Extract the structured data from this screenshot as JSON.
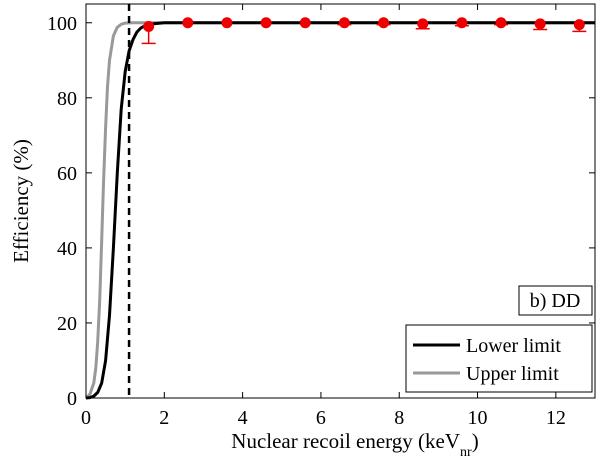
{
  "chart_data": {
    "type": "line",
    "title": "",
    "xlabel": "Nuclear recoil energy (keV",
    "xlabel_subscript": "nr",
    "xlabel_close": ")",
    "ylabel": "Efficiency (%)",
    "xlim": [
      0,
      13
    ],
    "ylim": [
      0,
      105
    ],
    "xticks": [
      0,
      2,
      4,
      6,
      8,
      10,
      12
    ],
    "yticks": [
      0,
      20,
      40,
      60,
      80,
      100
    ],
    "xtick_labels": [
      "0",
      "2",
      "4",
      "6",
      "8",
      "10",
      "12"
    ],
    "ytick_labels": [
      "0",
      "20",
      "40",
      "60",
      "80",
      "100"
    ],
    "grid": false,
    "legend_position": "bottom-right",
    "panel_label": "b) DD",
    "threshold_line": {
      "x": 1.1,
      "style": "dashed",
      "color": "#000000"
    },
    "series": [
      {
        "name": "Lower limit",
        "color": "#000000",
        "x": [
          0,
          0.1,
          0.2,
          0.3,
          0.4,
          0.5,
          0.6,
          0.7,
          0.8,
          0.9,
          1.0,
          1.1,
          1.2,
          1.3,
          1.4,
          1.5,
          1.7,
          2.0,
          3.0,
          5.0,
          8.0,
          13.0
        ],
        "y": [
          0,
          0.1,
          0.5,
          1.5,
          4,
          10,
          22,
          40,
          60,
          77,
          87,
          92.5,
          95.5,
          97.5,
          98.6,
          99.2,
          99.7,
          100,
          100,
          100,
          100,
          100
        ]
      },
      {
        "name": "Upper limit",
        "color": "#999999",
        "x": [
          0,
          0.1,
          0.2,
          0.25,
          0.3,
          0.35,
          0.4,
          0.45,
          0.5,
          0.55,
          0.6,
          0.7,
          0.8,
          0.9,
          1.0,
          1.2,
          13.0
        ],
        "y": [
          0,
          1,
          4,
          8,
          15,
          26,
          42,
          58,
          72,
          83,
          90,
          96.5,
          98.8,
          99.6,
          99.9,
          100,
          100
        ]
      }
    ],
    "points": {
      "color": "#ee0000",
      "x": [
        1.6,
        2.6,
        3.6,
        4.6,
        5.6,
        6.6,
        7.6,
        8.6,
        9.6,
        10.6,
        11.6,
        12.6
      ],
      "y": [
        99,
        100,
        100,
        100,
        100,
        100,
        100,
        99.7,
        100,
        100,
        99.7,
        99.5
      ],
      "err_low": [
        4.5,
        0,
        0,
        0,
        0,
        0.5,
        0.5,
        1.3,
        0.8,
        0.5,
        1.5,
        1.8
      ],
      "err_high": [
        0,
        0,
        0,
        0,
        0,
        0,
        0,
        0,
        0,
        0,
        0,
        0
      ]
    }
  }
}
